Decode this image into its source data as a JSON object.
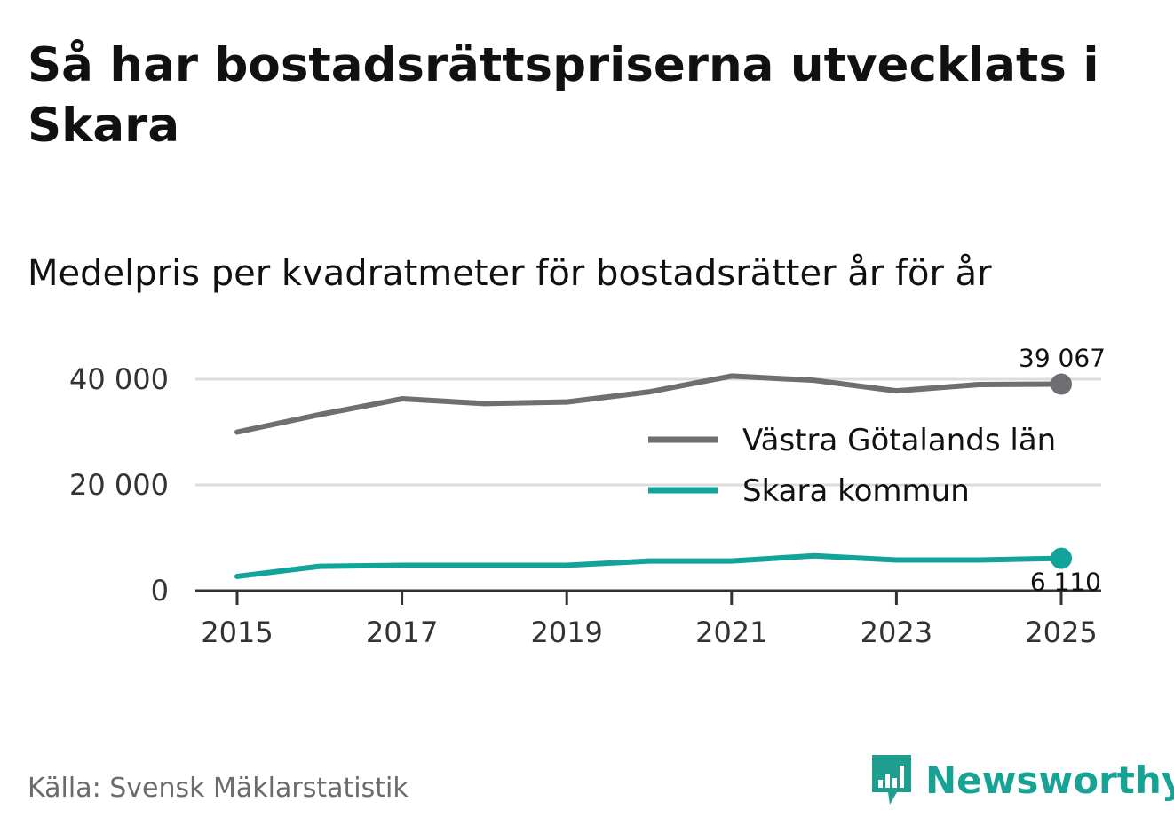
{
  "header": {
    "title": "Så har bostadsrättspriserna utvecklats i Skara",
    "subtitle": "Medelpris per kvadratmeter för bostadsrätter år för år"
  },
  "footer": {
    "source": "Källa: Svensk Mäklarstatistik",
    "brand": "Newsworthy"
  },
  "chart_data": {
    "type": "line",
    "title": "Medelpris per kvadratmeter för bostadsrätter år för år",
    "xlabel": "",
    "ylabel": "",
    "x": [
      2015,
      2016,
      2017,
      2018,
      2019,
      2020,
      2021,
      2022,
      2023,
      2024,
      2025
    ],
    "x_ticks": [
      "2015",
      "2017",
      "2019",
      "2021",
      "2023",
      "2025"
    ],
    "y_ticks": [
      {
        "value": 0,
        "label": "0"
      },
      {
        "value": 20000,
        "label": "20 000"
      },
      {
        "value": 40000,
        "label": "40 000"
      }
    ],
    "ylim": [
      0,
      40000
    ],
    "grid": true,
    "legend_position": "right",
    "series": [
      {
        "name": "Västra Götalands län",
        "color": "#6e6e73",
        "values": [
          30000,
          33300,
          36300,
          35400,
          35700,
          37600,
          40600,
          39800,
          37800,
          39000,
          39067
        ],
        "end_label": "39 067"
      },
      {
        "name": "Skara kommun",
        "color": "#12a39a",
        "values": [
          2700,
          4600,
          4800,
          4800,
          4800,
          5600,
          5600,
          6600,
          5800,
          5800,
          6110
        ],
        "end_label": "6 110"
      }
    ]
  }
}
